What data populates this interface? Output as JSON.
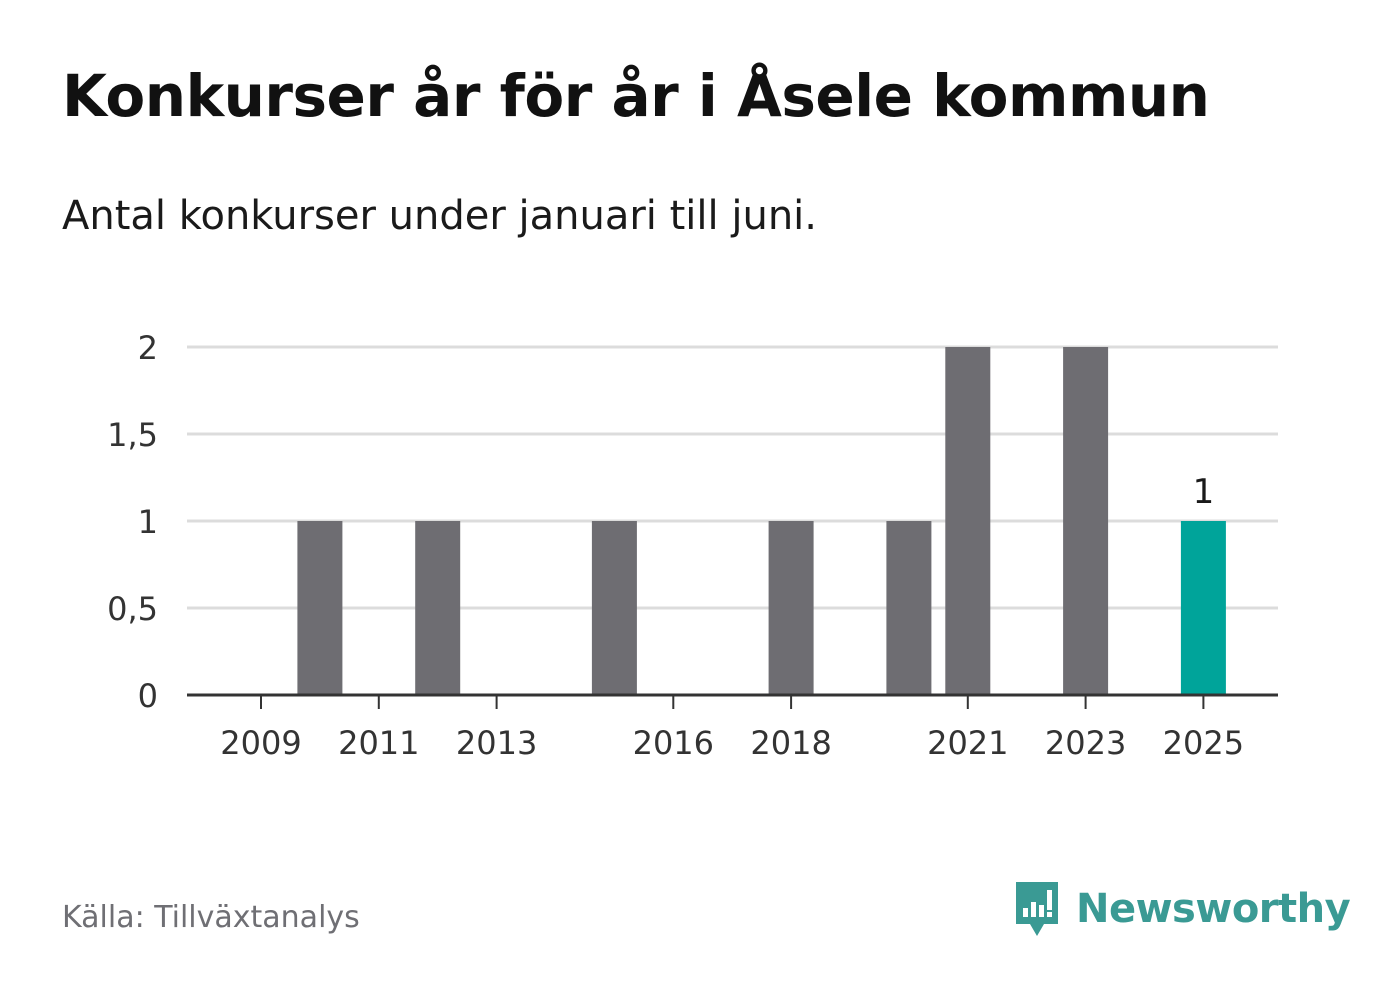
{
  "title": "Konkurser år för år i Åsele kommun",
  "subtitle": "Antal konkurser under januari till juni.",
  "source": "Källa: Tillväxtanalys",
  "brand": "Newsworthy",
  "colors": {
    "bar": "#6e6d72",
    "highlight": "#00a49a",
    "grid": "#dcdcdc",
    "axis": "#333333",
    "brand": "#3a9a94"
  },
  "icons": {
    "brand_logo": "bar-chart-speech-bubble-icon"
  },
  "chart_data": {
    "type": "bar",
    "categories": [
      "2009",
      "2010",
      "2011",
      "2012",
      "2013",
      "2014",
      "2015",
      "2016",
      "2017",
      "2018",
      "2019",
      "2020",
      "2021",
      "2022",
      "2023",
      "2024",
      "2025"
    ],
    "values": [
      0,
      1,
      0,
      1,
      0,
      0,
      1,
      0,
      0,
      1,
      0,
      1,
      2,
      0,
      2,
      0,
      1
    ],
    "highlight_category": "2025",
    "x_tick_labels": [
      "2009",
      "2011",
      "2013",
      "2016",
      "2018",
      "2021",
      "2023",
      "2025"
    ],
    "y_ticks": [
      0,
      0.5,
      1,
      1.5,
      2
    ],
    "y_tick_labels": [
      "0",
      "0,5",
      "1",
      "1,5",
      "2"
    ],
    "ylim": [
      0,
      2
    ],
    "data_labels": [
      {
        "category": "2025",
        "text": "1"
      }
    ],
    "grid": true,
    "legend": "none"
  }
}
